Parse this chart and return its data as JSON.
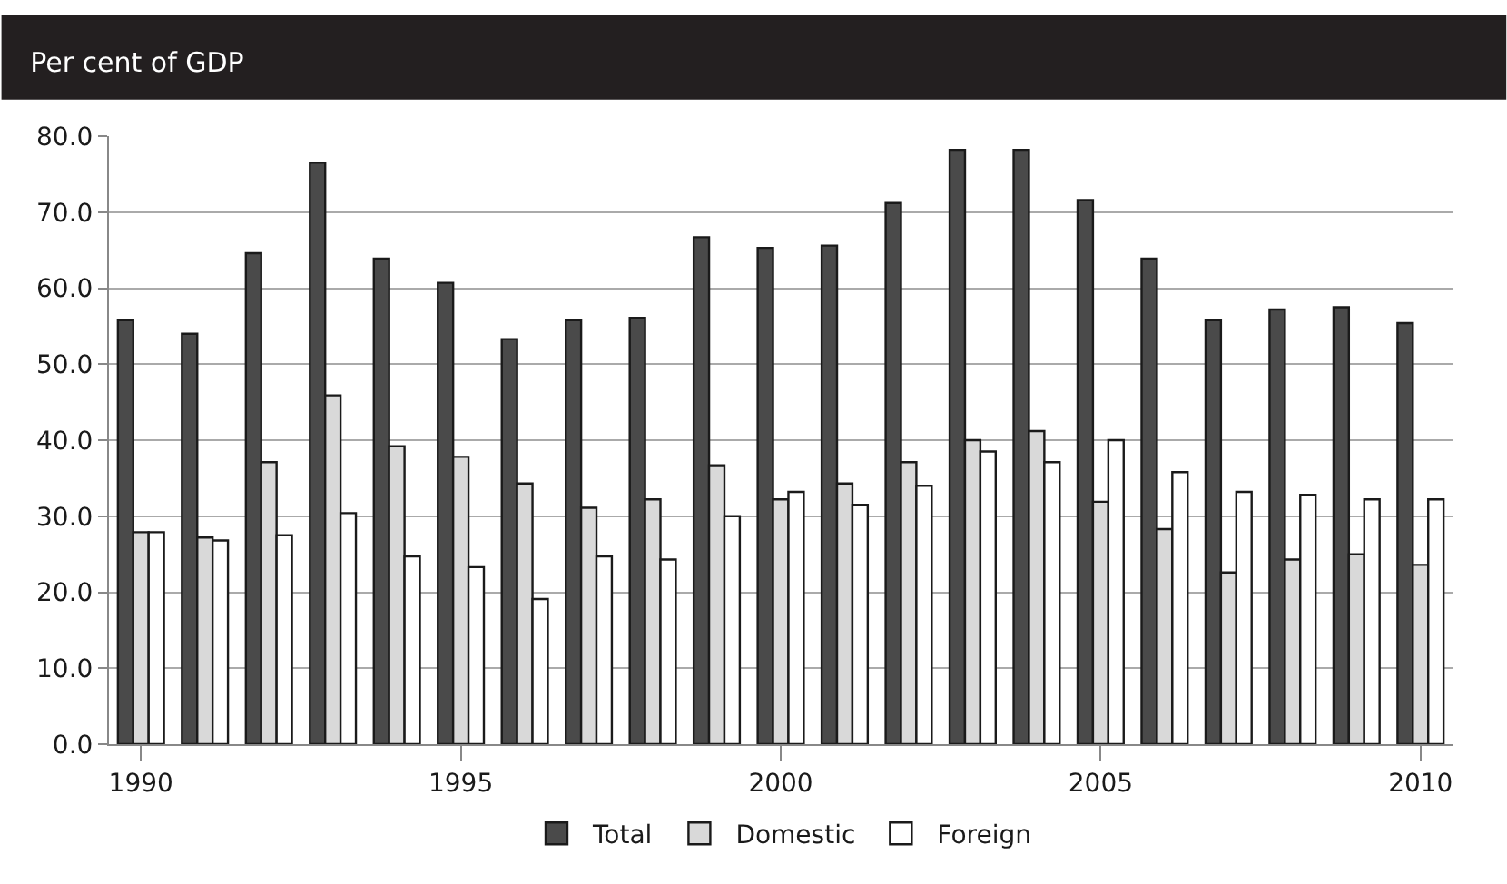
{
  "chart_data": {
    "type": "bar",
    "title": "Per cent of GDP",
    "categories": [
      "1990",
      null,
      null,
      null,
      null,
      "1995",
      null,
      null,
      null,
      null,
      "2000",
      null,
      null,
      null,
      null,
      "2005",
      null,
      null,
      null,
      null,
      "2010"
    ],
    "series": [
      {
        "name": "Total",
        "color": "#4a4a4a",
        "values": [
          55.8,
          54.0,
          64.6,
          76.5,
          63.9,
          60.7,
          53.3,
          55.8,
          56.1,
          66.7,
          65.3,
          65.6,
          71.2,
          78.2,
          78.2,
          71.6,
          63.9,
          55.8,
          57.2,
          57.5,
          55.4
        ]
      },
      {
        "name": "Domestic",
        "color": "#d9d9d9",
        "values": [
          27.9,
          27.2,
          37.1,
          45.9,
          39.2,
          37.8,
          34.3,
          31.1,
          32.2,
          36.7,
          32.2,
          34.3,
          37.1,
          40.0,
          41.2,
          31.9,
          28.3,
          22.6,
          24.3,
          25.0,
          23.6
        ]
      },
      {
        "name": "Foreign",
        "color": "#ffffff",
        "values": [
          27.9,
          26.8,
          27.5,
          30.4,
          24.7,
          23.3,
          19.1,
          24.7,
          24.3,
          30.0,
          33.2,
          31.5,
          34.0,
          38.5,
          37.1,
          40.0,
          35.8,
          33.2,
          32.8,
          32.2,
          32.2
        ]
      }
    ],
    "ylim": [
      0,
      80
    ],
    "yticks": [
      {
        "value": 0,
        "label": "0.0"
      },
      {
        "value": 10,
        "label": "10.0"
      },
      {
        "value": 20,
        "label": "20.0"
      },
      {
        "value": 30,
        "label": "30.0"
      },
      {
        "value": 40,
        "label": "40.0"
      },
      {
        "value": 50,
        "label": "50.0"
      },
      {
        "value": 60,
        "label": "60.0"
      },
      {
        "value": 70,
        "label": "70.0"
      },
      {
        "value": 80,
        "label": "80.0"
      }
    ],
    "grid": "y",
    "legend": "bottom"
  }
}
